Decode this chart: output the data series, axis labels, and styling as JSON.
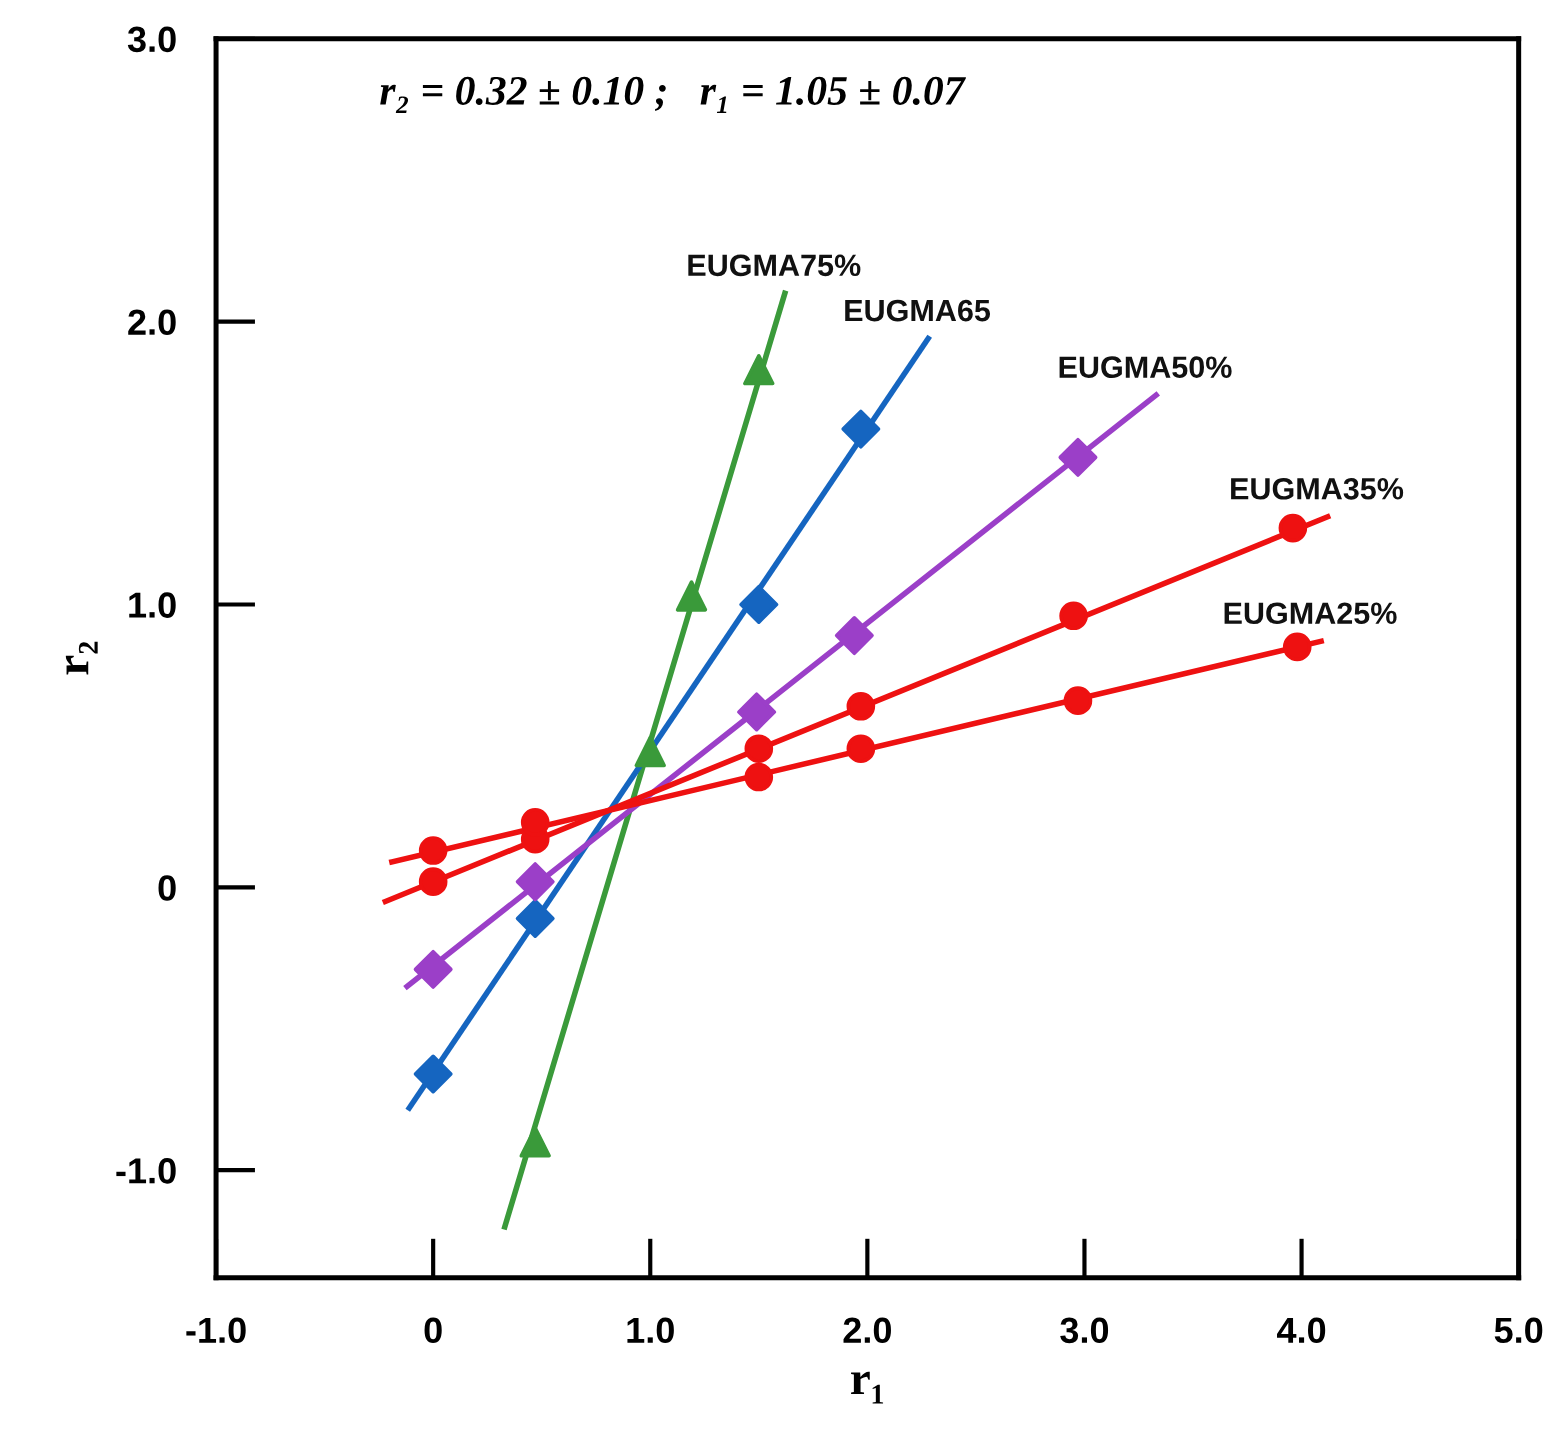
{
  "chart_data": {
    "type": "scatter",
    "xlabel": "r₁",
    "ylabel": "r₂",
    "xlim": [
      -1.0,
      5.0
    ],
    "ylim": [
      -1.38,
      3.0
    ],
    "xticks": [
      {
        "value": -1.0,
        "label": "-1.0"
      },
      0,
      {
        "value": 1.0,
        "label": "1.0"
      },
      {
        "value": 2.0,
        "label": "2.0"
      },
      {
        "value": 3.0,
        "label": "3.0"
      },
      {
        "value": 4.0,
        "label": "4.0"
      },
      {
        "value": 5.0,
        "label": "5.0"
      }
    ],
    "yticks": [
      {
        "value": -1.0,
        "label": "-1.0"
      },
      0,
      {
        "value": 1.0,
        "label": "1.0"
      },
      {
        "value": 2.0,
        "label": "2.0"
      },
      {
        "value": 3.0,
        "label": "3.0"
      }
    ],
    "grid": false,
    "legend": false,
    "annotations": [
      "r₂ = 0.32 ± 0.10 ;   r₁ = 1.05 ± 0.07"
    ],
    "series": [
      {
        "type": "line",
        "name": "EUGMA75%",
        "color": "#3a9a3a",
        "x": [
          0.33,
          1.62
        ],
        "values": [
          -1.2,
          2.1
        ],
        "marker": "none"
      },
      {
        "color": "#3a9a3a",
        "x": [
          0.47,
          1.0,
          1.19,
          1.5
        ],
        "values": [
          -0.9,
          0.48,
          1.03,
          1.83
        ],
        "marker": "triangle"
      },
      {
        "type": "line",
        "name": "EUGMA65",
        "color": "#1565c0",
        "x": [
          -0.11,
          2.28
        ],
        "values": [
          -0.78,
          1.94
        ],
        "marker": "none"
      },
      {
        "color": "#1565c0",
        "x": [
          0.0,
          0.47,
          1.5,
          1.97
        ],
        "values": [
          -0.66,
          -0.11,
          1.0,
          1.62
        ],
        "marker": "diamond"
      },
      {
        "type": "line",
        "name": "EUGMA50%",
        "color": "#9b3fc8",
        "x": [
          -0.12,
          3.33
        ],
        "values": [
          -0.35,
          1.74
        ],
        "marker": "none"
      },
      {
        "color": "#9b3fc8",
        "x": [
          0.0,
          0.47,
          1.49,
          1.94,
          2.97
        ],
        "values": [
          -0.29,
          0.02,
          0.62,
          0.89,
          1.52
        ],
        "marker": "diamond"
      },
      {
        "type": "line",
        "name": "EUGMA35%",
        "color": "#ee1111",
        "x": [
          -0.22,
          4.12
        ],
        "values": [
          -0.05,
          1.31
        ],
        "marker": "none"
      },
      {
        "color": "#ee1111",
        "x": [
          0.0,
          0.47,
          1.5,
          1.97,
          2.95,
          3.96
        ],
        "values": [
          0.02,
          0.17,
          0.49,
          0.64,
          0.96,
          1.27
        ],
        "marker": "circle"
      },
      {
        "type": "line",
        "name": "EUGMA25%",
        "color": "#ee1111",
        "x": [
          -0.19,
          4.09
        ],
        "values": [
          0.09,
          0.87
        ],
        "marker": "none"
      },
      {
        "color": "#ee1111",
        "x": [
          0.0,
          0.47,
          1.5,
          1.97,
          2.97,
          3.98
        ],
        "values": [
          0.13,
          0.23,
          0.39,
          0.49,
          0.66,
          0.85
        ],
        "marker": "circle"
      }
    ]
  }
}
